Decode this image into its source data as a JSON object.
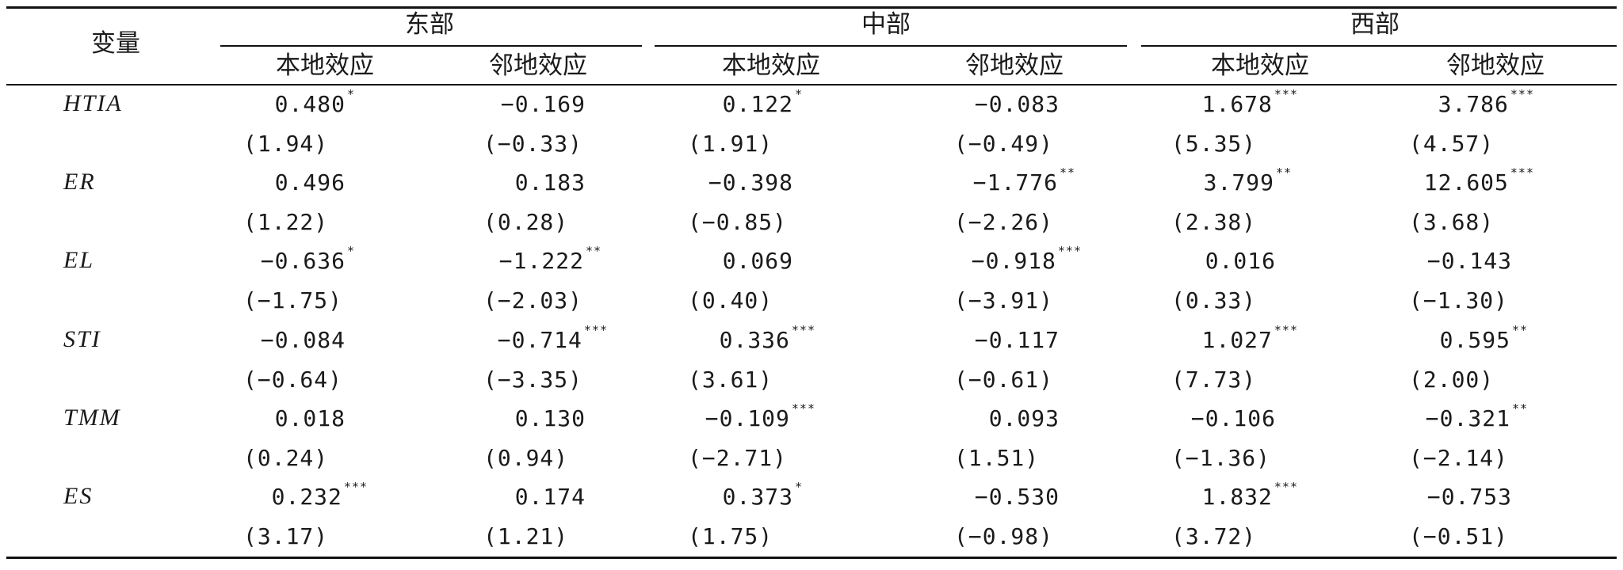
{
  "table": {
    "var_header": "变量",
    "groups": [
      {
        "label": "东部",
        "local": "本地效应",
        "neighbor": "邻地效应"
      },
      {
        "label": "中部",
        "local": "本地效应",
        "neighbor": "邻地效应"
      },
      {
        "label": "西部",
        "local": "本地效应",
        "neighbor": "邻地效应"
      }
    ],
    "rows": [
      {
        "var": "HTIA",
        "coef": [
          {
            "v": "0.480",
            "s": "*"
          },
          {
            "v": "−0.169",
            "s": ""
          },
          {
            "v": "0.122",
            "s": "*"
          },
          {
            "v": "−0.083",
            "s": ""
          },
          {
            "v": "1.678",
            "s": "***"
          },
          {
            "v": "3.786",
            "s": "***"
          }
        ],
        "t": [
          "(1.94)",
          "(−0.33)",
          "(1.91)",
          "(−0.49)",
          "(5.35)",
          "(4.57)"
        ]
      },
      {
        "var": "ER",
        "coef": [
          {
            "v": "0.496",
            "s": ""
          },
          {
            "v": "0.183",
            "s": ""
          },
          {
            "v": "−0.398",
            "s": ""
          },
          {
            "v": "−1.776",
            "s": "**"
          },
          {
            "v": "3.799",
            "s": "**"
          },
          {
            "v": "12.605",
            "s": "***"
          }
        ],
        "t": [
          "(1.22)",
          "(0.28)",
          "(−0.85)",
          "(−2.26)",
          "(2.38)",
          "(3.68)"
        ]
      },
      {
        "var": "EL",
        "coef": [
          {
            "v": "−0.636",
            "s": "*"
          },
          {
            "v": "−1.222",
            "s": "**"
          },
          {
            "v": "0.069",
            "s": ""
          },
          {
            "v": "−0.918",
            "s": "***"
          },
          {
            "v": "0.016",
            "s": ""
          },
          {
            "v": "−0.143",
            "s": ""
          }
        ],
        "t": [
          "(−1.75)",
          "(−2.03)",
          "(0.40)",
          "(−3.91)",
          "(0.33)",
          "(−1.30)"
        ]
      },
      {
        "var": "STI",
        "coef": [
          {
            "v": "−0.084",
            "s": ""
          },
          {
            "v": "−0.714",
            "s": "***"
          },
          {
            "v": "0.336",
            "s": "***"
          },
          {
            "v": "−0.117",
            "s": ""
          },
          {
            "v": "1.027",
            "s": "***"
          },
          {
            "v": "0.595",
            "s": "**"
          }
        ],
        "t": [
          "(−0.64)",
          "(−3.35)",
          "(3.61)",
          "(−0.61)",
          "(7.73)",
          "(2.00)"
        ]
      },
      {
        "var": "TMM",
        "coef": [
          {
            "v": "0.018",
            "s": ""
          },
          {
            "v": "0.130",
            "s": ""
          },
          {
            "v": "−0.109",
            "s": "***"
          },
          {
            "v": "0.093",
            "s": ""
          },
          {
            "v": "−0.106",
            "s": ""
          },
          {
            "v": "−0.321",
            "s": "**"
          }
        ],
        "t": [
          "(0.24)",
          "(0.94)",
          "(−2.71)",
          "(1.51)",
          "(−1.36)",
          "(−2.14)"
        ]
      },
      {
        "var": "ES",
        "coef": [
          {
            "v": "0.232",
            "s": "***"
          },
          {
            "v": "0.174",
            "s": ""
          },
          {
            "v": "0.373",
            "s": "*"
          },
          {
            "v": "−0.530",
            "s": ""
          },
          {
            "v": "1.832",
            "s": "***"
          },
          {
            "v": "−0.753",
            "s": ""
          }
        ],
        "t": [
          "(3.17)",
          "(1.21)",
          "(1.75)",
          "(−0.98)",
          "(3.72)",
          "(−0.51)"
        ]
      }
    ]
  }
}
